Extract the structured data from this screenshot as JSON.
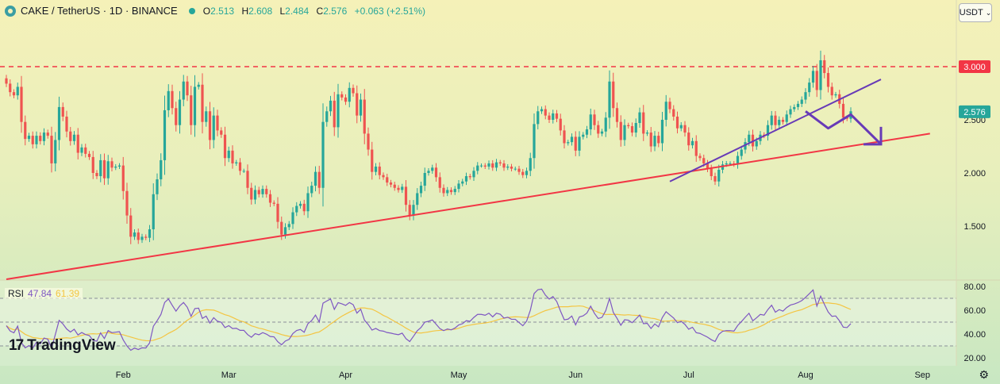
{
  "header": {
    "symbol": "CAKE / TetherUS · 1D · BINANCE",
    "open_k": "O",
    "open": "2.513",
    "high_k": "H",
    "high": "2.608",
    "low_k": "L",
    "low": "2.484",
    "close_k": "C",
    "close": "2.576",
    "change": "+0.063 (+2.51%)"
  },
  "currency_button": "USDT",
  "rsi_panel": {
    "label": "RSI",
    "rsi_value": "47.84",
    "ma_value": "61.39"
  },
  "branding": "TradingView",
  "colors": {
    "up": "#26a69a",
    "down": "#ef5350",
    "trendline": "#f23645",
    "channel": "#673ab7",
    "rsi": "#7e57c2",
    "rsi_ma": "#f4c542"
  },
  "chart_data": [
    {
      "type": "candlestick",
      "x_labels": [
        "Feb",
        "Mar",
        "Apr",
        "May",
        "Jun",
        "Jul",
        "Aug",
        "Sep"
      ],
      "y_ticks": [
        "1.500",
        "2.000",
        "2.500",
        "3.000"
      ],
      "y_tick_values": [
        1.5,
        2.0,
        2.5,
        3.0
      ],
      "price_labels": [
        {
          "text": "3.000",
          "value": 3.0,
          "color": "#f23645"
        },
        {
          "text": "2.576",
          "value": 2.576,
          "color": "#26a69a"
        }
      ],
      "resistance_level": 3.0,
      "annotations": {
        "ascending_support_line": {
          "from": [
            "Jan 1",
            1.0
          ],
          "to": [
            "Sep 3",
            2.37
          ]
        },
        "rising_trendline": {
          "from": [
            "Jun 26",
            1.92
          ],
          "to": [
            "Aug 21",
            2.88
          ]
        },
        "projected_path": [
          [
            "Aug 1",
            2.58
          ],
          [
            "Aug 7",
            2.42
          ],
          [
            "Aug 13",
            2.55
          ],
          [
            "Aug 21",
            2.27
          ]
        ]
      },
      "series": [
        {
          "daily_closes_from_jan_1": [
            2.84,
            2.76,
            2.73,
            2.81,
            2.48,
            2.32,
            2.35,
            2.27,
            2.35,
            2.3,
            2.38,
            2.35,
            2.09,
            2.31,
            2.62,
            2.53,
            2.39,
            2.3,
            2.36,
            2.19,
            2.24,
            2.18,
            2.15,
            2.0,
            1.97,
            2.12,
            1.95,
            2.11,
            2.05,
            2.06,
            2.07,
            1.83,
            1.6,
            1.4,
            1.44,
            1.37,
            1.4,
            1.39,
            1.47,
            1.8,
            1.94,
            2.12,
            2.59,
            2.77,
            2.61,
            2.45,
            2.69,
            2.86,
            2.73,
            2.45,
            2.81,
            2.83,
            2.48,
            2.58,
            2.31,
            2.54,
            2.4,
            2.36,
            2.14,
            2.21,
            2.09,
            2.1,
            2.02,
            2.02,
            1.86,
            1.75,
            1.84,
            1.8,
            1.85,
            1.8,
            1.72,
            1.71,
            1.54,
            1.42,
            1.49,
            1.52,
            1.63,
            1.69,
            1.71,
            1.64,
            1.81,
            1.88,
            2.01,
            1.86,
            2.48,
            2.58,
            2.68,
            2.43,
            2.74,
            2.71,
            2.67,
            2.8,
            2.75,
            2.54,
            2.69,
            2.37,
            2.22,
            2.01,
            2.06,
            1.98,
            1.96,
            1.91,
            1.89,
            1.86,
            1.84,
            1.87,
            1.7,
            1.6,
            1.7,
            1.81,
            1.88,
            2.0,
            2.02,
            2.05,
            1.96,
            1.86,
            1.81,
            1.84,
            1.82,
            1.85,
            1.9,
            1.92,
            1.97,
            1.96,
            2.02,
            2.07,
            2.07,
            2.06,
            2.09,
            2.05,
            2.1,
            2.09,
            2.05,
            2.06,
            2.04,
            2.04,
            2.01,
            1.98,
            2.02,
            2.14,
            2.46,
            2.58,
            2.6,
            2.54,
            2.5,
            2.56,
            2.51,
            2.4,
            2.28,
            2.29,
            2.34,
            2.21,
            2.34,
            2.36,
            2.41,
            2.55,
            2.45,
            2.37,
            2.39,
            2.52,
            2.86,
            2.61,
            2.48,
            2.31,
            2.45,
            2.44,
            2.38,
            2.47,
            2.57,
            2.37,
            2.38,
            2.25,
            2.35,
            2.28,
            2.5,
            2.67,
            2.6,
            2.53,
            2.42,
            2.45,
            2.38,
            2.26,
            2.3,
            2.16,
            2.14,
            2.09,
            2.04,
            1.97,
            1.92,
            2.03,
            2.08,
            2.09,
            2.09,
            2.08,
            2.16,
            2.22,
            2.29,
            2.36,
            2.25,
            2.3,
            2.36,
            2.35,
            2.45,
            2.54,
            2.45,
            2.5,
            2.48,
            2.55,
            2.6,
            2.62,
            2.65,
            2.69,
            2.76,
            2.85,
            2.96,
            2.78,
            3.06,
            2.94,
            2.81,
            2.73,
            2.74,
            2.65,
            2.52,
            2.51,
            2.58
          ]
        },
        {
          "name": "RSI",
          "type": "line",
          "range": [
            20,
            80
          ],
          "levels": [
            70,
            50,
            30
          ],
          "axis_ticks": [
            "80.00",
            "60.00",
            "40.00",
            "20.00"
          ],
          "last": 47.84
        },
        {
          "name": "RSI-based MA",
          "type": "line",
          "last": 61.39
        }
      ]
    }
  ]
}
